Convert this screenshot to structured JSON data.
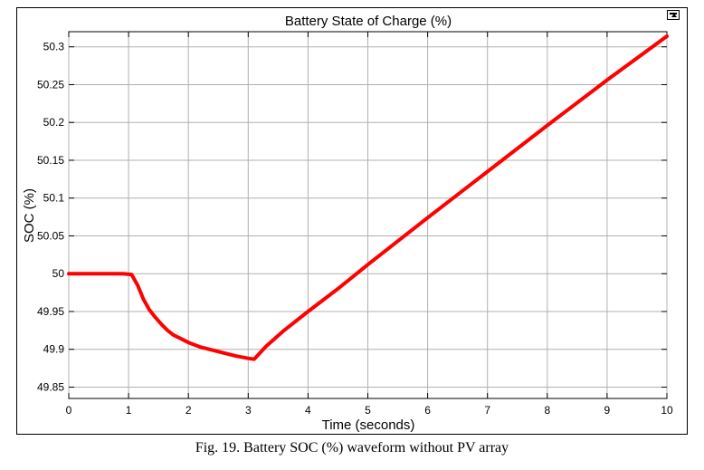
{
  "figure": {
    "caption": "Fig. 19. Battery SOC (%) waveform without PV array"
  },
  "toolbar": {
    "undock_icon": "undock-arrow-icon"
  },
  "chart_data": {
    "type": "line",
    "title": "Battery State of Charge (%)",
    "xlabel": "Time (seconds)",
    "ylabel": "SOC (%)",
    "xlim": [
      0,
      10
    ],
    "ylim": [
      49.835,
      50.32
    ],
    "xticks": [
      "0",
      "1",
      "2",
      "3",
      "4",
      "5",
      "6",
      "7",
      "8",
      "9",
      "10"
    ],
    "xtick_values": [
      0,
      1,
      2,
      3,
      4,
      5,
      6,
      7,
      8,
      9,
      10
    ],
    "yticks": [
      "49.85",
      "49.9",
      "49.95",
      "50",
      "50.05",
      "50.1",
      "50.15",
      "50.2",
      "50.25",
      "50.3"
    ],
    "ytick_values": [
      49.85,
      49.9,
      49.95,
      50,
      50.05,
      50.1,
      50.15,
      50.2,
      50.25,
      50.3
    ],
    "grid": true,
    "line_color": "#ff0000",
    "series": [
      {
        "x": [
          0,
          0.9,
          1.05,
          1.15,
          1.25,
          1.35,
          1.45,
          1.55,
          1.65,
          1.75,
          1.85,
          2.0,
          2.2,
          2.4,
          2.6,
          2.8,
          3.0,
          3.1,
          3.3,
          3.6,
          4.0,
          4.5,
          5.0,
          6.0,
          7.0,
          8.0,
          9.0,
          10.0
        ],
        "y": [
          50.0,
          50.0,
          49.999,
          49.985,
          49.966,
          49.952,
          49.942,
          49.933,
          49.925,
          49.919,
          49.915,
          49.909,
          49.903,
          49.899,
          49.895,
          49.891,
          49.888,
          49.887,
          49.904,
          49.925,
          49.95,
          49.98,
          50.012,
          50.074,
          50.135,
          50.196,
          50.256,
          50.314
        ]
      }
    ]
  }
}
